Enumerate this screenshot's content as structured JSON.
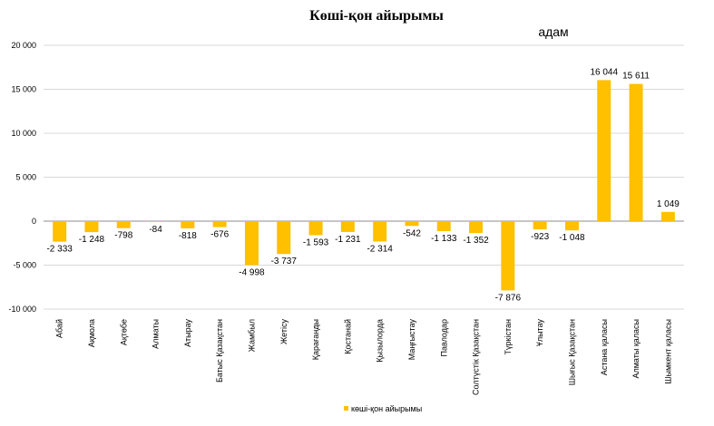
{
  "chart_data": {
    "type": "bar",
    "title": "Көші-қон айырымы",
    "unit_label": "адам",
    "categories": [
      "Абай",
      "Ақмола",
      "Ақтөбе",
      "Алматы",
      "Атырау",
      "Батыс Қазақстан",
      "Жамбыл",
      "Жетісу",
      "Қарағанды",
      "Қостанай",
      "Қызылорда",
      "Маңғыстау",
      "Павлодар",
      "Солтүстік Қазақстан",
      "Түркістан",
      "Ұлытау",
      "Шығыс Қазақстан",
      "Астана қаласы",
      "Алматы қаласы",
      "Шымкент қаласы"
    ],
    "series": [
      {
        "name": "көші-қон айырымы",
        "values": [
          -2333,
          -1248,
          -798,
          -84,
          -818,
          -676,
          -4998,
          -3737,
          -1593,
          -1231,
          -2314,
          -542,
          -1133,
          -1352,
          -7876,
          -923,
          -1048,
          16044,
          15611,
          1049
        ],
        "labels": [
          "-2 333",
          "-1 248",
          "-798",
          "-84",
          "-818",
          "-676",
          "-4 998",
          "-3 737",
          "-1 593",
          "-1 231",
          "-2 314",
          "-542",
          "-1 133",
          "-1 352",
          "-7 876",
          "-923",
          "-1 048",
          "16 044",
          "15 611",
          "1 049"
        ]
      }
    ],
    "ylim": [
      -10000,
      20000
    ],
    "yticks": [
      "-10 000",
      "-5 000",
      "0",
      "5 000",
      "10 000",
      "15 000",
      "20 000"
    ],
    "ytick_values": [
      -10000,
      -5000,
      0,
      5000,
      10000,
      15000,
      20000
    ],
    "grid": true,
    "legend_position": "bottom",
    "colors": {
      "bar": "#FFC000",
      "grid": "#D9D9D9",
      "axis": "#8C8C8C"
    }
  }
}
